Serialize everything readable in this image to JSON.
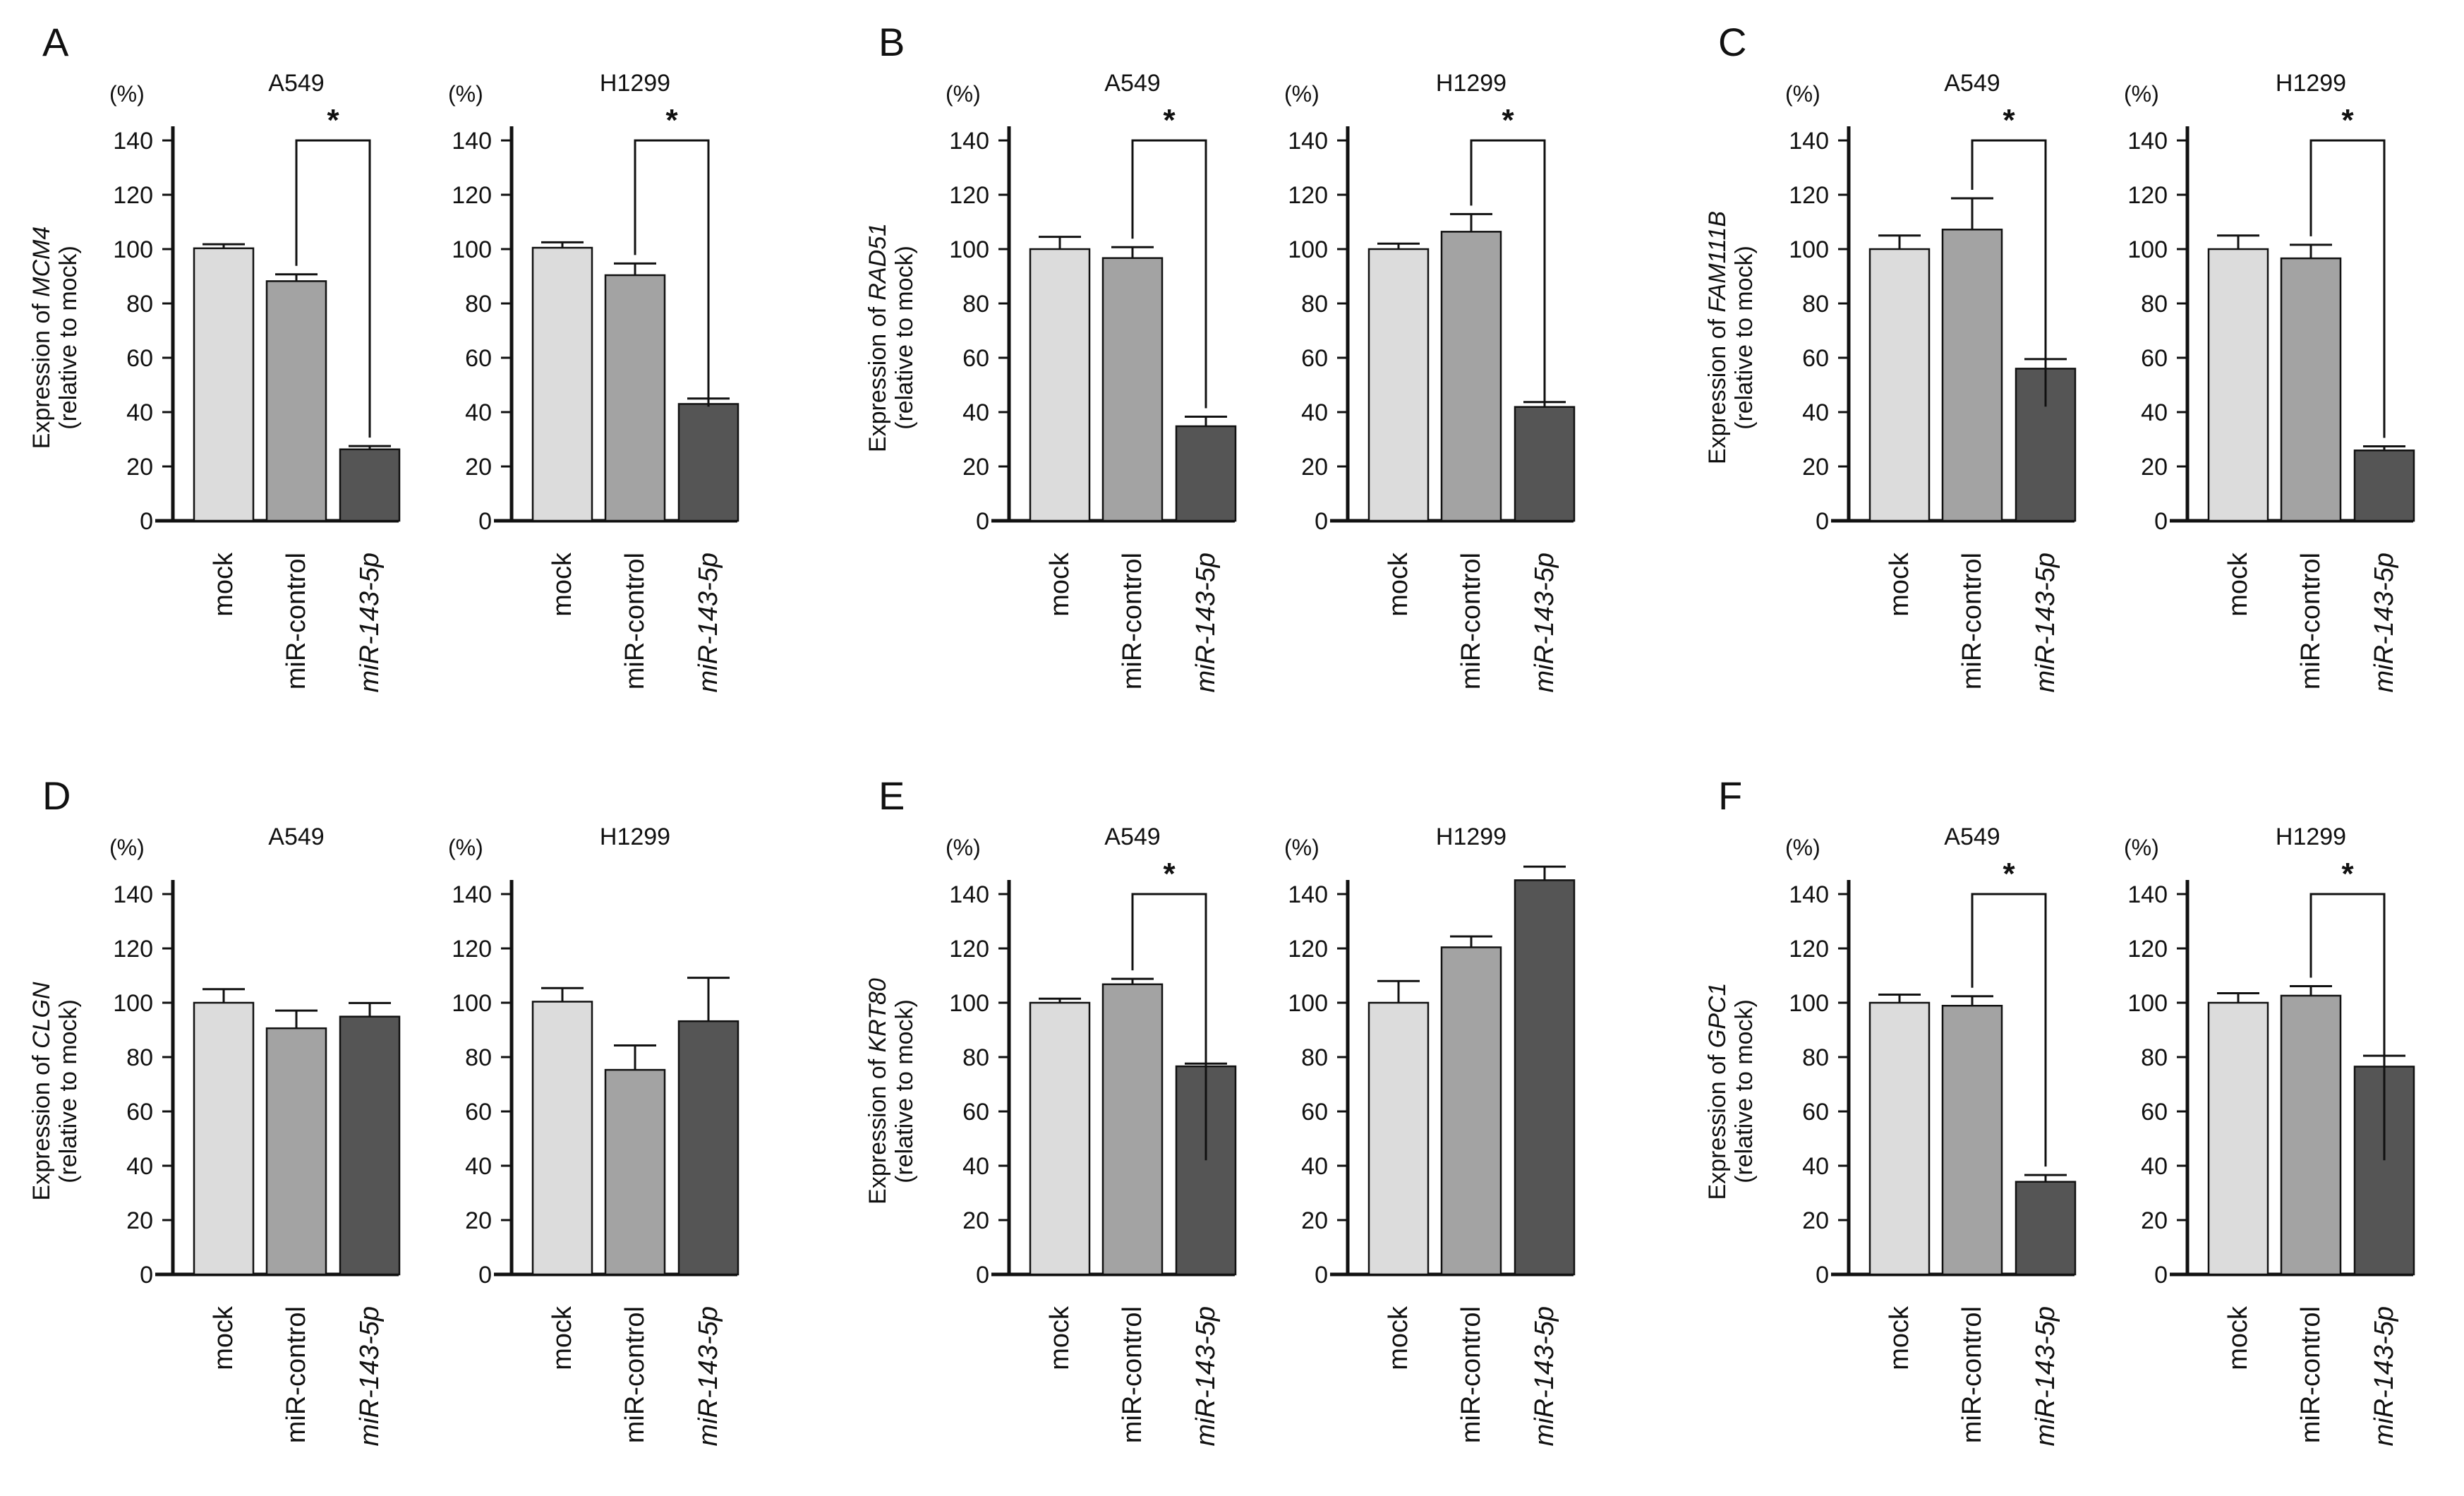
{
  "figure": {
    "colors": {
      "bar_mock": "#dcdcdc",
      "bar_control": "#a3a3a3",
      "bar_mir": "#555555",
      "ink": "#111111"
    }
  },
  "chart_data": [
    {
      "panel_letter": "A",
      "type": "bar",
      "title": "A549",
      "unit": "(%)",
      "ylabel_prefix": "Expression of ",
      "ylabel_gene": "MCM4",
      "ylabel_line2": "(relative to mock)",
      "categories": [
        "mock",
        "miR-control",
        "miR-143-5p"
      ],
      "italic_categories": [
        false,
        false,
        true
      ],
      "values": [
        100.3,
        88.2,
        26.3
      ],
      "errors": [
        1.5,
        2.5,
        1.2
      ],
      "ylim": [
        0,
        140
      ],
      "yticks": [
        0,
        20,
        40,
        60,
        80,
        100,
        120,
        140
      ],
      "significance": {
        "label": "*",
        "from": 1,
        "to": 2
      }
    },
    {
      "panel_letter": "",
      "type": "bar",
      "title": "H1299",
      "unit": "(%)",
      "categories": [
        "mock",
        "miR-control",
        "miR-143-5p"
      ],
      "italic_categories": [
        false,
        false,
        true
      ],
      "values": [
        100.5,
        90.4,
        43.0
      ],
      "errors": [
        2.0,
        4.3,
        2.0
      ],
      "ylim": [
        0,
        140
      ],
      "yticks": [
        0,
        20,
        40,
        60,
        80,
        100,
        120,
        140
      ],
      "significance": {
        "label": "*",
        "from": 1,
        "to": 2
      }
    },
    {
      "panel_letter": "B",
      "type": "bar",
      "title": "A549",
      "unit": "(%)",
      "ylabel_prefix": "Expression of ",
      "ylabel_gene": "RAD51",
      "ylabel_line2": "(relative to mock)",
      "categories": [
        "mock",
        "miR-control",
        "miR-143-5p"
      ],
      "italic_categories": [
        false,
        false,
        true
      ],
      "values": [
        100.0,
        96.7,
        34.8
      ],
      "errors": [
        4.5,
        4.0,
        3.5
      ],
      "ylim": [
        0,
        140
      ],
      "yticks": [
        0,
        20,
        40,
        60,
        80,
        100,
        120,
        140
      ],
      "significance": {
        "label": "*",
        "from": 1,
        "to": 2
      }
    },
    {
      "panel_letter": "",
      "type": "bar",
      "title": "H1299",
      "unit": "(%)",
      "categories": [
        "mock",
        "miR-control",
        "miR-143-5p"
      ],
      "italic_categories": [
        false,
        false,
        true
      ],
      "values": [
        100.0,
        106.4,
        41.9
      ],
      "errors": [
        2.0,
        6.5,
        1.8
      ],
      "ylim": [
        0,
        140
      ],
      "yticks": [
        0,
        20,
        40,
        60,
        80,
        100,
        120,
        140
      ],
      "significance": {
        "label": "*",
        "from": 1,
        "to": 2
      }
    },
    {
      "panel_letter": "C",
      "type": "bar",
      "title": "A549",
      "unit": "(%)",
      "ylabel_prefix": "Expression of ",
      "ylabel_gene": "FAM111B",
      "ylabel_line2": "(relative to mock)",
      "categories": [
        "mock",
        "miR-control",
        "miR-143-5p"
      ],
      "italic_categories": [
        false,
        false,
        true
      ],
      "values": [
        100.0,
        107.2,
        56.0
      ],
      "errors": [
        5.0,
        11.5,
        3.5
      ],
      "ylim": [
        0,
        140
      ],
      "yticks": [
        0,
        20,
        40,
        60,
        80,
        100,
        120,
        140
      ],
      "significance": {
        "label": "*",
        "from": 1,
        "to": 2
      }
    },
    {
      "panel_letter": "",
      "type": "bar",
      "title": "H1299",
      "unit": "(%)",
      "categories": [
        "mock",
        "miR-control",
        "miR-143-5p"
      ],
      "italic_categories": [
        false,
        false,
        true
      ],
      "values": [
        100.0,
        96.6,
        25.9
      ],
      "errors": [
        5.0,
        5.0,
        1.5
      ],
      "ylim": [
        0,
        140
      ],
      "yticks": [
        0,
        20,
        40,
        60,
        80,
        100,
        120,
        140
      ],
      "significance": {
        "label": "*",
        "from": 1,
        "to": 2
      }
    },
    {
      "panel_letter": "D",
      "type": "bar",
      "title": "A549",
      "unit": "(%)",
      "ylabel_prefix": "Expression of ",
      "ylabel_gene": "CLGN",
      "ylabel_line2": "(relative to mock)",
      "categories": [
        "mock",
        "miR-control",
        "miR-143-5p"
      ],
      "italic_categories": [
        false,
        false,
        true
      ],
      "values": [
        100.0,
        90.6,
        94.9
      ],
      "errors": [
        5.0,
        6.5,
        5.0
      ],
      "ylim": [
        0,
        140
      ],
      "yticks": [
        0,
        20,
        40,
        60,
        80,
        100,
        120,
        140
      ],
      "significance": null
    },
    {
      "panel_letter": "",
      "type": "bar",
      "title": "H1299",
      "unit": "(%)",
      "categories": [
        "mock",
        "miR-control",
        "miR-143-5p"
      ],
      "italic_categories": [
        false,
        false,
        true
      ],
      "values": [
        100.4,
        75.3,
        93.2
      ],
      "errors": [
        5.0,
        9.0,
        16.0
      ],
      "ylim": [
        0,
        140
      ],
      "yticks": [
        0,
        20,
        40,
        60,
        80,
        100,
        120,
        140
      ],
      "significance": null
    },
    {
      "panel_letter": "E",
      "type": "bar",
      "title": "A549",
      "unit": "(%)",
      "ylabel_prefix": "Expression of ",
      "ylabel_gene": "KRT80",
      "ylabel_line2": "(relative to mock)",
      "categories": [
        "mock",
        "miR-control",
        "miR-143-5p"
      ],
      "italic_categories": [
        false,
        false,
        true
      ],
      "values": [
        100.0,
        106.8,
        76.6
      ],
      "errors": [
        1.5,
        2.0,
        1.0
      ],
      "ylim": [
        0,
        140
      ],
      "yticks": [
        0,
        20,
        40,
        60,
        80,
        100,
        120,
        140
      ],
      "significance": {
        "label": "*",
        "from": 1,
        "to": 2
      }
    },
    {
      "panel_letter": "",
      "type": "bar",
      "title": "H1299",
      "unit": "(%)",
      "categories": [
        "mock",
        "miR-control",
        "miR-143-5p"
      ],
      "italic_categories": [
        false,
        false,
        true
      ],
      "values": [
        100.0,
        120.4,
        145.1
      ],
      "errors": [
        8.0,
        4.0,
        5.0
      ],
      "ylim": [
        0,
        140
      ],
      "yticks": [
        0,
        20,
        40,
        60,
        80,
        100,
        120,
        140
      ],
      "significance": null
    },
    {
      "panel_letter": "F",
      "type": "bar",
      "title": "A549",
      "unit": "(%)",
      "ylabel_prefix": "Expression of ",
      "ylabel_gene": "GPC1",
      "ylabel_line2": "(relative to mock)",
      "categories": [
        "mock",
        "miR-control",
        "miR-143-5p"
      ],
      "italic_categories": [
        false,
        false,
        true
      ],
      "values": [
        100.0,
        98.9,
        34.1
      ],
      "errors": [
        3.0,
        3.5,
        2.5
      ],
      "ylim": [
        0,
        140
      ],
      "yticks": [
        0,
        20,
        40,
        60,
        80,
        100,
        120,
        140
      ],
      "significance": {
        "label": "*",
        "from": 1,
        "to": 2
      }
    },
    {
      "panel_letter": "",
      "type": "bar",
      "title": "H1299",
      "unit": "(%)",
      "categories": [
        "mock",
        "miR-control",
        "miR-143-5p"
      ],
      "italic_categories": [
        false,
        false,
        true
      ],
      "values": [
        100.0,
        102.6,
        76.5
      ],
      "errors": [
        3.5,
        3.5,
        4.0
      ],
      "ylim": [
        0,
        140
      ],
      "yticks": [
        0,
        20,
        40,
        60,
        80,
        100,
        120,
        140
      ],
      "significance": {
        "label": "*",
        "from": 1,
        "to": 2
      }
    }
  ]
}
